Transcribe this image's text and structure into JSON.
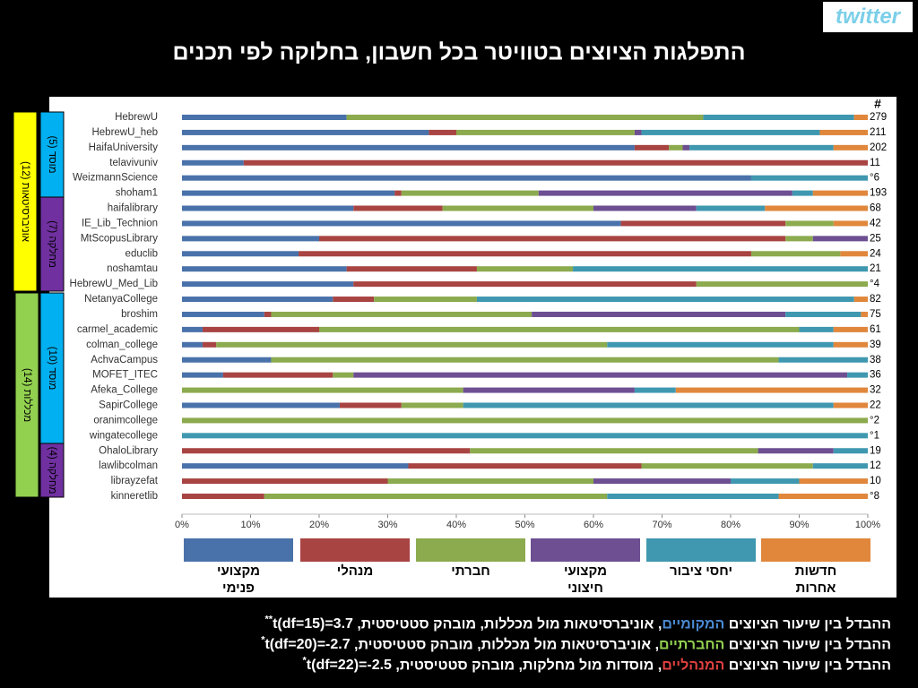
{
  "logo": "twitter",
  "chart_data": {
    "type": "stacked-barh",
    "title": "התפלגות הציוצים בטוויטר בכל חשבון, בחלוקה לפי תכנים",
    "categories": [
      "HebrewU",
      "HebrewU_heb",
      "HaifaUniversity",
      "telavivuniv",
      "WeizmannScience",
      "shoham1",
      "haifalibrary",
      "IE_Lib_Technion",
      "MtScopusLibrary",
      "educlib",
      "noshamtau",
      "HebrewU_Med_Lib",
      "NetanyaCollege",
      "broshim",
      "carmel_academic",
      "colman_college",
      "AchvaCampus",
      "MOFET_ITEC",
      "Afeka_College",
      "SapirCollege",
      "oranimcollege",
      "wingatecollege",
      "OhaloLibrary",
      "lawlibcolman",
      "librayzefat",
      "kinneretlib"
    ],
    "count_header": "#",
    "counts": [
      "279",
      "211",
      "202",
      "11",
      "°6",
      "193",
      "68",
      "42",
      "25",
      "24",
      "21",
      "°4",
      "82",
      "75",
      "61",
      "39",
      "38",
      "36",
      "32",
      "22",
      "°2",
      "°1",
      "19",
      "12",
      "10",
      "°8"
    ],
    "series": [
      {
        "name": "מקצועי פנימי",
        "color": "#4a72aa",
        "values": [
          24,
          36,
          66,
          9,
          83,
          31,
          25,
          64,
          20,
          17,
          24,
          25,
          22,
          12,
          3,
          3,
          13,
          6,
          0,
          23,
          0,
          0,
          0,
          33,
          0,
          0
        ]
      },
      {
        "name": "מנהלי",
        "color": "#a84442",
        "values": [
          0,
          4,
          5,
          91,
          0,
          1,
          13,
          24,
          68,
          66,
          19,
          50,
          6,
          1,
          17,
          2,
          0,
          16,
          0,
          9,
          0,
          0,
          42,
          34,
          30,
          12
        ]
      },
      {
        "name": "חברתי",
        "color": "#8caa4e",
        "values": [
          52,
          26,
          2,
          0,
          0,
          20,
          22,
          7,
          4,
          13,
          14,
          25,
          15,
          38,
          70,
          57,
          74,
          3,
          41,
          9,
          100,
          0,
          42,
          25,
          30,
          50
        ]
      },
      {
        "name": "מקצועי חיצוני",
        "color": "#6d4f92",
        "values": [
          0,
          1,
          1,
          0,
          0,
          37,
          15,
          0,
          8,
          0,
          0,
          0,
          0,
          37,
          0,
          0,
          0,
          72,
          25,
          0,
          0,
          0,
          11,
          0,
          20,
          0
        ]
      },
      {
        "name": "יחסי ציבור",
        "color": "#3f98b0",
        "values": [
          22,
          26,
          21,
          0,
          17,
          3,
          10,
          0,
          0,
          0,
          43,
          0,
          55,
          11,
          5,
          33,
          13,
          3,
          6,
          54,
          0,
          100,
          5,
          8,
          10,
          25
        ]
      },
      {
        "name": "חדשות אחרות",
        "color": "#e0873c",
        "values": [
          2,
          7,
          5,
          0,
          0,
          8,
          15,
          5,
          0,
          4,
          0,
          0,
          2,
          1,
          5,
          5,
          0,
          0,
          28,
          5,
          0,
          0,
          0,
          0,
          10,
          13
        ]
      }
    ],
    "xlim": [
      0,
      100
    ],
    "xticks": [
      {
        "value": 0,
        "label": "0%"
      },
      {
        "value": 10,
        "label": "10%"
      },
      {
        "value": 20,
        "label": "20%"
      },
      {
        "value": 30,
        "label": "30%"
      },
      {
        "value": 40,
        "label": "40%"
      },
      {
        "value": 50,
        "label": "50%"
      },
      {
        "value": 60,
        "label": "60%"
      },
      {
        "value": 70,
        "label": "70%"
      },
      {
        "value": 80,
        "label": "80%"
      },
      {
        "value": 90,
        "label": "90%"
      },
      {
        "value": 100,
        "label": "100%"
      }
    ],
    "groups": [
      {
        "label": "אוניברסיטאות (12)",
        "color": "#ffff00"
      },
      {
        "label": "מכללות (14)",
        "color": "#92d050"
      },
      {
        "label": "מוסד (5)",
        "color": "#00b0f0"
      },
      {
        "label": "מחלקה (7)",
        "color": "#7030a0"
      },
      {
        "label": "מוסד (10)",
        "color": "#00b0f0"
      },
      {
        "label": "מחלקה (4)",
        "color": "#7030a0"
      }
    ]
  },
  "notes": [
    {
      "pre": "ההבדל בין שיעור הציוצים ",
      "hl": "המקומיים",
      "hl_color": "#4a8ad4",
      "post": ", אוניברסיטאות מול מכללות, מובהק סטטיסטית, ",
      "stat": "t(df=15)=3.7",
      "sig": "**"
    },
    {
      "pre": "ההבדל בין שיעור הציוצים ",
      "hl": "החברתיים",
      "hl_color": "#92d050",
      "post": ", אוניברסיטאות מול מכללות, מובהק סטטיסטית, ",
      "stat": "t(df=20)=-2.7",
      "sig": "*"
    },
    {
      "pre": "ההבדל בין שיעור הציוצים ",
      "hl": "המנהליים",
      "hl_color": "#e04040",
      "post": ", מוסדות מול מחלקות, מובהק סטטיסטית, ",
      "stat": "t(df=22)=-2.5",
      "sig": "*"
    }
  ]
}
